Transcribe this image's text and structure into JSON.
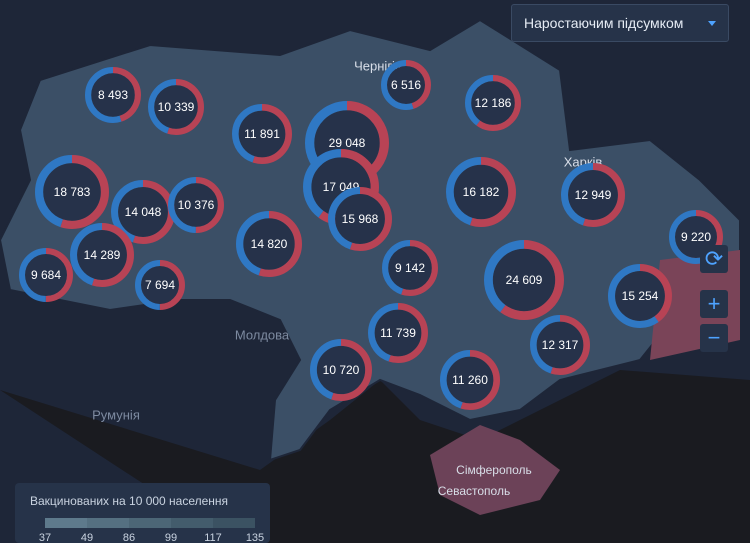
{
  "control": {
    "mode": "Наростаючим підсумком"
  },
  "places": [
    "Чернігів",
    "Харків",
    "Молдова",
    "Румунія",
    "Сімферополь",
    "Севастополь"
  ],
  "legend": {
    "title": "Вакцинованих на 10 000 населення",
    "ticks": [
      37,
      49,
      86,
      99,
      117,
      135
    ]
  },
  "markers": [
    {
      "label": "8 493",
      "red_share": 45
    },
    {
      "label": "10 339",
      "red_share": 55
    },
    {
      "label": "11 891",
      "red_share": 55
    },
    {
      "label": "29 048",
      "red_share": 60
    },
    {
      "label": "6 516",
      "red_share": 45
    },
    {
      "label": "12 186",
      "red_share": 60
    },
    {
      "label": "18 783",
      "red_share": 55
    },
    {
      "label": "14 048",
      "red_share": 55
    },
    {
      "label": "10 376",
      "red_share": 50
    },
    {
      "label": "17 049",
      "red_share": 60
    },
    {
      "label": "15 968",
      "red_share": 55
    },
    {
      "label": "16 182",
      "red_share": 55
    },
    {
      "label": "12 949",
      "red_share": 55
    },
    {
      "label": "9 220",
      "red_share": 40
    },
    {
      "label": "14 820",
      "red_share": 55
    },
    {
      "label": "14 289",
      "red_share": 55
    },
    {
      "label": "9 684",
      "red_share": 50
    },
    {
      "label": "7 694",
      "red_share": 50
    },
    {
      "label": "9 142",
      "red_share": 55
    },
    {
      "label": "24 609",
      "red_share": 60
    },
    {
      "label": "15 254",
      "red_share": 40
    },
    {
      "label": "11 739",
      "red_share": 55
    },
    {
      "label": "12 317",
      "red_share": 55
    },
    {
      "label": "10 720",
      "red_share": 55
    },
    {
      "label": "11 260",
      "red_share": 55
    }
  ]
}
